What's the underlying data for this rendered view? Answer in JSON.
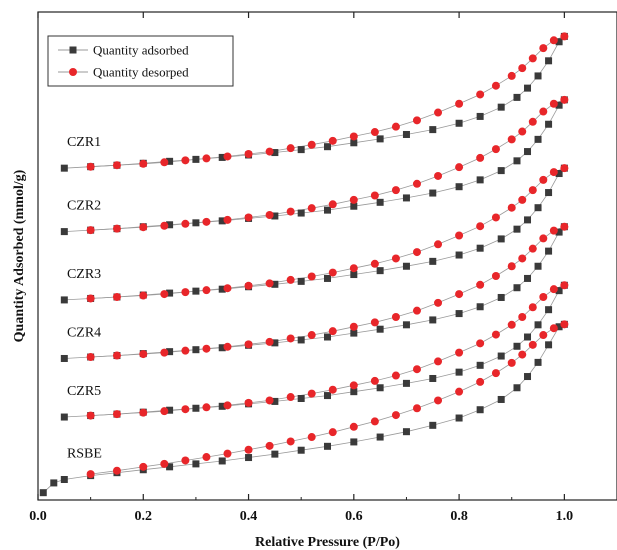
{
  "chart_data": {
    "type": "scatter",
    "xlabel": "Relative Pressure (P/Po)",
    "ylabel": "Quantity Adsorbed (mmol/g)",
    "xlim": [
      0.0,
      1.1
    ],
    "xticks": [
      "0.0",
      "0.2",
      "0.4",
      "0.6",
      "0.8",
      "1.0"
    ],
    "ylim": [
      0,
      100
    ],
    "y_tick_labels": false,
    "grid": false,
    "legend": {
      "position": "top-left",
      "entries": [
        "Quantity adsorbed",
        "Quantity desorped"
      ]
    },
    "colors": {
      "adsorbed": "#3a3a3a",
      "desorbed": "#e8262a",
      "line": "#9a9a9a"
    },
    "samples": [
      {
        "label": "CZR1",
        "adsorption": [
          [
            0.05,
            68.0
          ],
          [
            0.1,
            68.3
          ],
          [
            0.15,
            68.6
          ],
          [
            0.2,
            69.0
          ],
          [
            0.25,
            69.4
          ],
          [
            0.3,
            69.8
          ],
          [
            0.35,
            70.2
          ],
          [
            0.4,
            70.7
          ],
          [
            0.45,
            71.2
          ],
          [
            0.5,
            71.8
          ],
          [
            0.55,
            72.4
          ],
          [
            0.6,
            73.2
          ],
          [
            0.65,
            74.0
          ],
          [
            0.7,
            74.9
          ],
          [
            0.75,
            75.9
          ],
          [
            0.8,
            77.2
          ],
          [
            0.84,
            78.6
          ],
          [
            0.88,
            80.5
          ],
          [
            0.91,
            82.5
          ],
          [
            0.93,
            84.4
          ],
          [
            0.95,
            86.9
          ],
          [
            0.97,
            90.0
          ],
          [
            0.99,
            93.9
          ],
          [
            1.0,
            95.0
          ]
        ],
        "desorption": [
          [
            1.0,
            95.0
          ],
          [
            0.98,
            94.2
          ],
          [
            0.96,
            92.6
          ],
          [
            0.94,
            90.5
          ],
          [
            0.92,
            88.5
          ],
          [
            0.9,
            86.9
          ],
          [
            0.87,
            84.9
          ],
          [
            0.84,
            83.1
          ],
          [
            0.8,
            81.2
          ],
          [
            0.76,
            79.4
          ],
          [
            0.72,
            77.8
          ],
          [
            0.68,
            76.5
          ],
          [
            0.64,
            75.4
          ],
          [
            0.6,
            74.5
          ],
          [
            0.56,
            73.6
          ],
          [
            0.52,
            72.8
          ],
          [
            0.48,
            72.1
          ],
          [
            0.44,
            71.4
          ],
          [
            0.4,
            70.9
          ],
          [
            0.36,
            70.4
          ],
          [
            0.32,
            70.0
          ],
          [
            0.28,
            69.6
          ],
          [
            0.24,
            69.2
          ],
          [
            0.2,
            68.9
          ],
          [
            0.15,
            68.6
          ],
          [
            0.1,
            68.3
          ]
        ]
      },
      {
        "label": "CZR2",
        "adsorption": [
          [
            0.05,
            55.0
          ],
          [
            0.1,
            55.3
          ],
          [
            0.15,
            55.6
          ],
          [
            0.2,
            56.0
          ],
          [
            0.25,
            56.4
          ],
          [
            0.3,
            56.8
          ],
          [
            0.35,
            57.2
          ],
          [
            0.4,
            57.7
          ],
          [
            0.45,
            58.2
          ],
          [
            0.5,
            58.8
          ],
          [
            0.55,
            59.4
          ],
          [
            0.6,
            60.2
          ],
          [
            0.65,
            61.0
          ],
          [
            0.7,
            61.9
          ],
          [
            0.75,
            62.9
          ],
          [
            0.8,
            64.2
          ],
          [
            0.84,
            65.6
          ],
          [
            0.88,
            67.5
          ],
          [
            0.91,
            69.5
          ],
          [
            0.93,
            71.4
          ],
          [
            0.95,
            73.9
          ],
          [
            0.97,
            77.0
          ],
          [
            0.99,
            80.9
          ],
          [
            1.0,
            82.0
          ]
        ],
        "desorption": [
          [
            1.0,
            82.0
          ],
          [
            0.98,
            81.2
          ],
          [
            0.96,
            79.6
          ],
          [
            0.94,
            77.5
          ],
          [
            0.92,
            75.5
          ],
          [
            0.9,
            73.9
          ],
          [
            0.87,
            71.9
          ],
          [
            0.84,
            70.1
          ],
          [
            0.8,
            68.2
          ],
          [
            0.76,
            66.4
          ],
          [
            0.72,
            64.8
          ],
          [
            0.68,
            63.5
          ],
          [
            0.64,
            62.4
          ],
          [
            0.6,
            61.5
          ],
          [
            0.56,
            60.6
          ],
          [
            0.52,
            59.8
          ],
          [
            0.48,
            59.1
          ],
          [
            0.44,
            58.4
          ],
          [
            0.4,
            57.9
          ],
          [
            0.36,
            57.4
          ],
          [
            0.32,
            57.0
          ],
          [
            0.28,
            56.6
          ],
          [
            0.24,
            56.2
          ],
          [
            0.2,
            55.9
          ],
          [
            0.15,
            55.6
          ],
          [
            0.1,
            55.3
          ]
        ]
      },
      {
        "label": "CZR3",
        "adsorption": [
          [
            0.05,
            41.0
          ],
          [
            0.1,
            41.3
          ],
          [
            0.15,
            41.6
          ],
          [
            0.2,
            42.0
          ],
          [
            0.25,
            42.4
          ],
          [
            0.3,
            42.8
          ],
          [
            0.35,
            43.2
          ],
          [
            0.4,
            43.7
          ],
          [
            0.45,
            44.2
          ],
          [
            0.5,
            44.8
          ],
          [
            0.55,
            45.4
          ],
          [
            0.6,
            46.2
          ],
          [
            0.65,
            47.0
          ],
          [
            0.7,
            47.9
          ],
          [
            0.75,
            48.9
          ],
          [
            0.8,
            50.2
          ],
          [
            0.84,
            51.6
          ],
          [
            0.88,
            53.5
          ],
          [
            0.91,
            55.5
          ],
          [
            0.93,
            57.4
          ],
          [
            0.95,
            59.9
          ],
          [
            0.97,
            63.0
          ],
          [
            0.99,
            66.9
          ],
          [
            1.0,
            68.0
          ]
        ],
        "desorption": [
          [
            1.0,
            68.0
          ],
          [
            0.98,
            67.2
          ],
          [
            0.96,
            65.6
          ],
          [
            0.94,
            63.5
          ],
          [
            0.92,
            61.5
          ],
          [
            0.9,
            59.9
          ],
          [
            0.87,
            57.9
          ],
          [
            0.84,
            56.1
          ],
          [
            0.8,
            54.2
          ],
          [
            0.76,
            52.4
          ],
          [
            0.72,
            50.8
          ],
          [
            0.68,
            49.5
          ],
          [
            0.64,
            48.4
          ],
          [
            0.6,
            47.5
          ],
          [
            0.56,
            46.6
          ],
          [
            0.52,
            45.8
          ],
          [
            0.48,
            45.1
          ],
          [
            0.44,
            44.4
          ],
          [
            0.4,
            43.9
          ],
          [
            0.36,
            43.4
          ],
          [
            0.32,
            43.0
          ],
          [
            0.28,
            42.6
          ],
          [
            0.24,
            42.2
          ],
          [
            0.2,
            41.9
          ],
          [
            0.15,
            41.6
          ],
          [
            0.1,
            41.3
          ]
        ]
      },
      {
        "label": "CZR4",
        "adsorption": [
          [
            0.05,
            29.0
          ],
          [
            0.1,
            29.3
          ],
          [
            0.15,
            29.6
          ],
          [
            0.2,
            30.0
          ],
          [
            0.25,
            30.4
          ],
          [
            0.3,
            30.8
          ],
          [
            0.35,
            31.2
          ],
          [
            0.4,
            31.7
          ],
          [
            0.45,
            32.2
          ],
          [
            0.5,
            32.8
          ],
          [
            0.55,
            33.4
          ],
          [
            0.6,
            34.2
          ],
          [
            0.65,
            35.0
          ],
          [
            0.7,
            35.9
          ],
          [
            0.75,
            36.9
          ],
          [
            0.8,
            38.2
          ],
          [
            0.84,
            39.6
          ],
          [
            0.88,
            41.5
          ],
          [
            0.91,
            43.5
          ],
          [
            0.93,
            45.4
          ],
          [
            0.95,
            47.9
          ],
          [
            0.97,
            51.0
          ],
          [
            0.99,
            54.9
          ],
          [
            1.0,
            56.0
          ]
        ],
        "desorption": [
          [
            1.0,
            56.0
          ],
          [
            0.98,
            55.2
          ],
          [
            0.96,
            53.6
          ],
          [
            0.94,
            51.5
          ],
          [
            0.92,
            49.5
          ],
          [
            0.9,
            47.9
          ],
          [
            0.87,
            45.9
          ],
          [
            0.84,
            44.1
          ],
          [
            0.8,
            42.2
          ],
          [
            0.76,
            40.4
          ],
          [
            0.72,
            38.8
          ],
          [
            0.68,
            37.5
          ],
          [
            0.64,
            36.4
          ],
          [
            0.6,
            35.5
          ],
          [
            0.56,
            34.6
          ],
          [
            0.52,
            33.8
          ],
          [
            0.48,
            33.1
          ],
          [
            0.44,
            32.4
          ],
          [
            0.4,
            31.9
          ],
          [
            0.36,
            31.4
          ],
          [
            0.32,
            31.0
          ],
          [
            0.28,
            30.6
          ],
          [
            0.24,
            30.2
          ],
          [
            0.2,
            29.9
          ],
          [
            0.15,
            29.6
          ],
          [
            0.1,
            29.3
          ]
        ]
      },
      {
        "label": "CZR5",
        "adsorption": [
          [
            0.05,
            17.0
          ],
          [
            0.1,
            17.3
          ],
          [
            0.15,
            17.6
          ],
          [
            0.2,
            18.0
          ],
          [
            0.25,
            18.4
          ],
          [
            0.3,
            18.8
          ],
          [
            0.35,
            19.2
          ],
          [
            0.4,
            19.7
          ],
          [
            0.45,
            20.2
          ],
          [
            0.5,
            20.8
          ],
          [
            0.55,
            21.4
          ],
          [
            0.6,
            22.2
          ],
          [
            0.65,
            23.0
          ],
          [
            0.7,
            23.9
          ],
          [
            0.75,
            24.9
          ],
          [
            0.8,
            26.2
          ],
          [
            0.84,
            27.6
          ],
          [
            0.88,
            29.5
          ],
          [
            0.91,
            31.5
          ],
          [
            0.93,
            33.4
          ],
          [
            0.95,
            35.9
          ],
          [
            0.97,
            39.0
          ],
          [
            0.99,
            42.9
          ],
          [
            1.0,
            44.0
          ]
        ],
        "desorption": [
          [
            1.0,
            44.0
          ],
          [
            0.98,
            43.2
          ],
          [
            0.96,
            41.6
          ],
          [
            0.94,
            39.5
          ],
          [
            0.92,
            37.5
          ],
          [
            0.9,
            35.9
          ],
          [
            0.87,
            33.9
          ],
          [
            0.84,
            32.1
          ],
          [
            0.8,
            30.2
          ],
          [
            0.76,
            28.4
          ],
          [
            0.72,
            26.8
          ],
          [
            0.68,
            25.5
          ],
          [
            0.64,
            24.4
          ],
          [
            0.6,
            23.5
          ],
          [
            0.56,
            22.6
          ],
          [
            0.52,
            21.8
          ],
          [
            0.48,
            21.1
          ],
          [
            0.44,
            20.4
          ],
          [
            0.4,
            19.9
          ],
          [
            0.36,
            19.4
          ],
          [
            0.32,
            19.0
          ],
          [
            0.28,
            18.6
          ],
          [
            0.24,
            18.2
          ],
          [
            0.2,
            17.9
          ],
          [
            0.15,
            17.6
          ],
          [
            0.1,
            17.3
          ]
        ]
      },
      {
        "label": "RSBE",
        "adsorption": [
          [
            0.01,
            1.5
          ],
          [
            0.03,
            3.5
          ],
          [
            0.05,
            4.2
          ],
          [
            0.1,
            5.0
          ],
          [
            0.15,
            5.6
          ],
          [
            0.2,
            6.2
          ],
          [
            0.25,
            6.8
          ],
          [
            0.3,
            7.4
          ],
          [
            0.35,
            8.0
          ],
          [
            0.4,
            8.7
          ],
          [
            0.45,
            9.4
          ],
          [
            0.5,
            10.2
          ],
          [
            0.55,
            11.0
          ],
          [
            0.6,
            11.9
          ],
          [
            0.65,
            12.9
          ],
          [
            0.7,
            14.0
          ],
          [
            0.75,
            15.3
          ],
          [
            0.8,
            16.8
          ],
          [
            0.84,
            18.5
          ],
          [
            0.88,
            20.6
          ],
          [
            0.91,
            23.0
          ],
          [
            0.93,
            25.3
          ],
          [
            0.95,
            28.2
          ],
          [
            0.97,
            31.8
          ],
          [
            0.99,
            35.5
          ],
          [
            1.0,
            36.0
          ]
        ],
        "desorption": [
          [
            1.0,
            36.0
          ],
          [
            0.98,
            35.2
          ],
          [
            0.96,
            33.8
          ],
          [
            0.94,
            31.8
          ],
          [
            0.92,
            29.8
          ],
          [
            0.9,
            28.1
          ],
          [
            0.87,
            26.0
          ],
          [
            0.84,
            24.2
          ],
          [
            0.8,
            22.2
          ],
          [
            0.76,
            20.4
          ],
          [
            0.72,
            18.8
          ],
          [
            0.68,
            17.4
          ],
          [
            0.64,
            16.1
          ],
          [
            0.6,
            15.0
          ],
          [
            0.56,
            13.9
          ],
          [
            0.52,
            12.9
          ],
          [
            0.48,
            12.0
          ],
          [
            0.44,
            11.1
          ],
          [
            0.4,
            10.3
          ],
          [
            0.36,
            9.5
          ],
          [
            0.32,
            8.8
          ],
          [
            0.28,
            8.1
          ],
          [
            0.24,
            7.4
          ],
          [
            0.2,
            6.8
          ],
          [
            0.15,
            6.0
          ],
          [
            0.1,
            5.3
          ]
        ]
      }
    ]
  }
}
